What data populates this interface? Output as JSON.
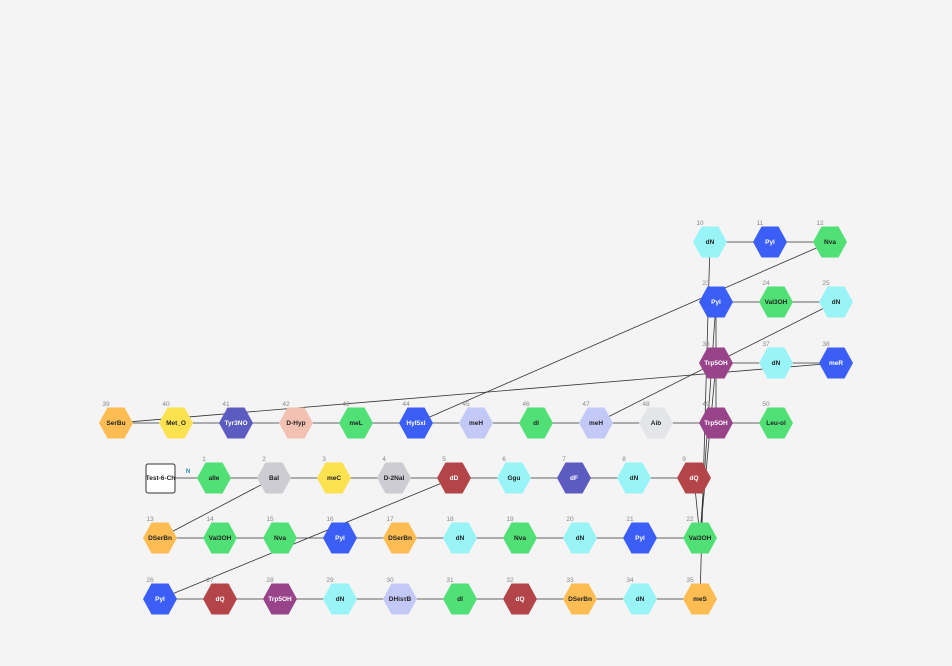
{
  "molecule": {
    "cap_label": "Test-6-Ch",
    "n_terminus_label": "N",
    "colors": {
      "green": "#50e076",
      "blue": "#3b5ef7",
      "cyan": "#98f4f6",
      "purple": "#98438a",
      "orange": "#fdbd52",
      "yellow": "#fbe24e",
      "indigo": "#5c5cc0",
      "salmon": "#f3c1b1",
      "red": "#b34448",
      "lavender": "#c3c9f7",
      "gray": "#ccccd2",
      "lightgray": "#e3e5e8",
      "line": "#333333"
    },
    "residues": [
      {
        "n": 1,
        "label": "aIle",
        "color": "green"
      },
      {
        "n": 2,
        "label": "Bal",
        "color": "gray"
      },
      {
        "n": 3,
        "label": "meC",
        "color": "yellow"
      },
      {
        "n": 4,
        "label": "D-2Nal",
        "color": "gray"
      },
      {
        "n": 5,
        "label": "dD",
        "color": "red"
      },
      {
        "n": 6,
        "label": "Ggu",
        "color": "cyan"
      },
      {
        "n": 7,
        "label": "dF",
        "color": "indigo"
      },
      {
        "n": 8,
        "label": "dN",
        "color": "cyan"
      },
      {
        "n": 9,
        "label": "dQ",
        "color": "red"
      },
      {
        "n": 10,
        "label": "dN",
        "color": "cyan"
      },
      {
        "n": 11,
        "label": "Pyl",
        "color": "blue"
      },
      {
        "n": 12,
        "label": "Nva",
        "color": "green"
      },
      {
        "n": 13,
        "label": "DSerBn",
        "color": "orange"
      },
      {
        "n": 14,
        "label": "Val3OH",
        "color": "green"
      },
      {
        "n": 15,
        "label": "Nva",
        "color": "green"
      },
      {
        "n": 16,
        "label": "Pyl",
        "color": "blue"
      },
      {
        "n": 17,
        "label": "DSerBn",
        "color": "orange"
      },
      {
        "n": 18,
        "label": "dN",
        "color": "cyan"
      },
      {
        "n": 19,
        "label": "Nva",
        "color": "green"
      },
      {
        "n": 20,
        "label": "dN",
        "color": "cyan"
      },
      {
        "n": 21,
        "label": "Pyl",
        "color": "blue"
      },
      {
        "n": 22,
        "label": "Val3OH",
        "color": "green"
      },
      {
        "n": 23,
        "label": "Pyl",
        "color": "blue"
      },
      {
        "n": 24,
        "label": "Val3OH",
        "color": "green"
      },
      {
        "n": 25,
        "label": "dN",
        "color": "cyan"
      },
      {
        "n": 26,
        "label": "Pyl",
        "color": "blue"
      },
      {
        "n": 27,
        "label": "dQ",
        "color": "red"
      },
      {
        "n": 28,
        "label": "Trp5OH",
        "color": "purple"
      },
      {
        "n": 29,
        "label": "dN",
        "color": "cyan"
      },
      {
        "n": 30,
        "label": "DHisτB",
        "color": "lavender"
      },
      {
        "n": 31,
        "label": "dI",
        "color": "green"
      },
      {
        "n": 32,
        "label": "dQ",
        "color": "red"
      },
      {
        "n": 33,
        "label": "DSerBn",
        "color": "orange"
      },
      {
        "n": 34,
        "label": "dN",
        "color": "cyan"
      },
      {
        "n": 35,
        "label": "meS",
        "color": "orange"
      },
      {
        "n": 36,
        "label": "Trp5OH",
        "color": "purple"
      },
      {
        "n": 37,
        "label": "dN",
        "color": "cyan"
      },
      {
        "n": 38,
        "label": "meR",
        "color": "blue"
      },
      {
        "n": 39,
        "label": "SerBu",
        "color": "orange"
      },
      {
        "n": 40,
        "label": "Met_O",
        "color": "yellow"
      },
      {
        "n": 41,
        "label": "Tyr3NO",
        "color": "indigo"
      },
      {
        "n": 42,
        "label": "D-Hyp",
        "color": "salmon"
      },
      {
        "n": 43,
        "label": "meL",
        "color": "green"
      },
      {
        "n": 44,
        "label": "Hyl5xl",
        "color": "blue"
      },
      {
        "n": 45,
        "label": "meH",
        "color": "lavender"
      },
      {
        "n": 46,
        "label": "dI",
        "color": "green"
      },
      {
        "n": 47,
        "label": "meH",
        "color": "lavender"
      },
      {
        "n": 48,
        "label": "Aib",
        "color": "lightgray"
      },
      {
        "n": 49,
        "label": "Trp5OH",
        "color": "purple"
      },
      {
        "n": 50,
        "label": "Leu-ol",
        "color": "green"
      }
    ],
    "bonds": [
      [
        2,
        13
      ],
      [
        5,
        26
      ],
      [
        9,
        22
      ],
      [
        10,
        35
      ],
      [
        12,
        44
      ],
      [
        22,
        23
      ],
      [
        22,
        36
      ],
      [
        23,
        49
      ],
      [
        25,
        47
      ],
      [
        38,
        39
      ]
    ]
  }
}
